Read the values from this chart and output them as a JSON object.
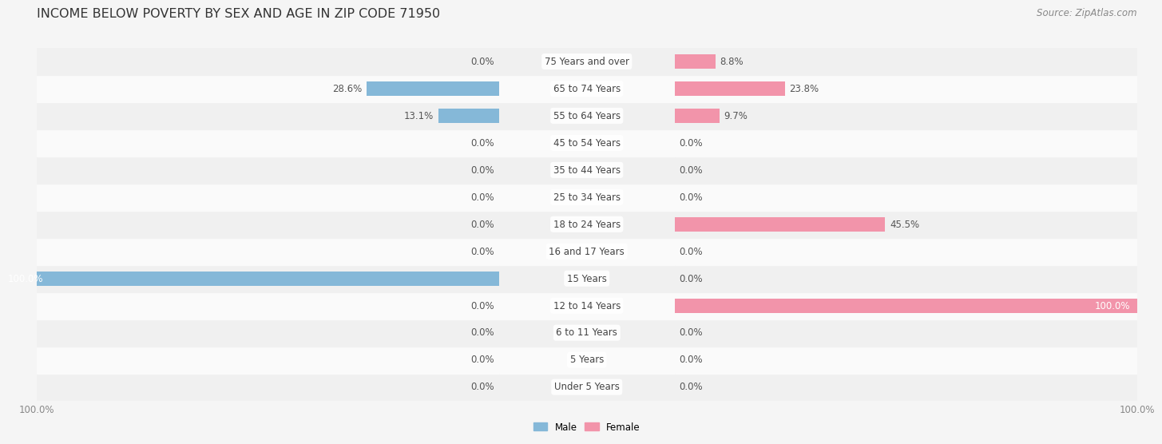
{
  "title": "INCOME BELOW POVERTY BY SEX AND AGE IN ZIP CODE 71950",
  "source": "Source: ZipAtlas.com",
  "categories": [
    "Under 5 Years",
    "5 Years",
    "6 to 11 Years",
    "12 to 14 Years",
    "15 Years",
    "16 and 17 Years",
    "18 to 24 Years",
    "25 to 34 Years",
    "35 to 44 Years",
    "45 to 54 Years",
    "55 to 64 Years",
    "65 to 74 Years",
    "75 Years and over"
  ],
  "male_values": [
    0.0,
    0.0,
    0.0,
    0.0,
    100.0,
    0.0,
    0.0,
    0.0,
    0.0,
    0.0,
    13.1,
    28.6,
    0.0
  ],
  "female_values": [
    0.0,
    0.0,
    0.0,
    100.0,
    0.0,
    0.0,
    45.5,
    0.0,
    0.0,
    0.0,
    9.7,
    23.8,
    8.8
  ],
  "male_color": "#85b8d8",
  "female_color": "#f294aa",
  "male_label": "Male",
  "female_label": "Female",
  "row_color_odd": "#f0f0f0",
  "row_color_even": "#fafafa",
  "background_color": "#f5f5f5",
  "max_value": 100.0,
  "title_fontsize": 11.5,
  "source_fontsize": 8.5,
  "label_fontsize": 8.5,
  "value_fontsize": 8.5,
  "axis_fontsize": 8.5
}
